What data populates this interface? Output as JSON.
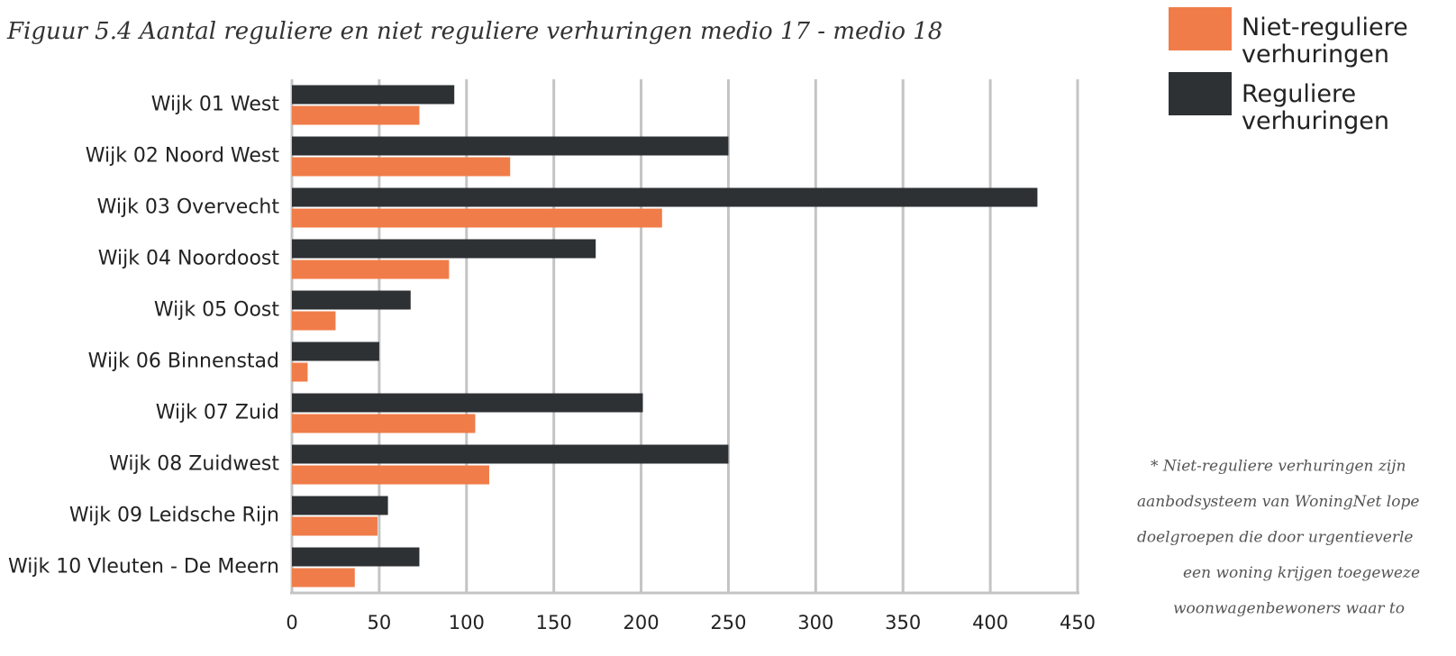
{
  "chart_data": {
    "type": "barh",
    "title": "Figuur 5.4 Aantal reguliere en niet reguliere verhuringen medio 17 - medio 18",
    "categories": [
      "Wijk 01 West",
      "Wijk 02 Noord West",
      "Wijk 03 Overvecht",
      "Wijk 04 Noordoost",
      "Wijk 05 Oost",
      "Wijk 06 Binnenstad",
      "Wijk 07 Zuid",
      "Wijk 08 Zuidwest",
      "Wijk 09 Leidsche Rijn",
      "Wijk 10 Vleuten - De Meern"
    ],
    "series": [
      {
        "name": "Niet-reguliere verhuringen",
        "color": "#f07c49",
        "values": [
          73,
          125,
          212,
          90,
          25,
          9,
          105,
          113,
          49,
          36
        ]
      },
      {
        "name": "Reguliere verhuringen",
        "color": "#2e3134",
        "values": [
          93,
          250,
          427,
          174,
          68,
          50,
          201,
          250,
          55,
          73
        ]
      }
    ],
    "xlim": [
      0,
      450
    ],
    "xticks": [
      0,
      50,
      100,
      150,
      200,
      250,
      300,
      350,
      400,
      450
    ],
    "grid": true,
    "legend": "top-right",
    "footnote": [
      "* Niet-reguliere verhuringen zijn",
      "aanbodsysteem van WoningNet lope",
      "doelgroepen die door urgentieverle",
      "een woning krijgen toegeweze",
      "woonwagenbewoners waar to"
    ]
  }
}
